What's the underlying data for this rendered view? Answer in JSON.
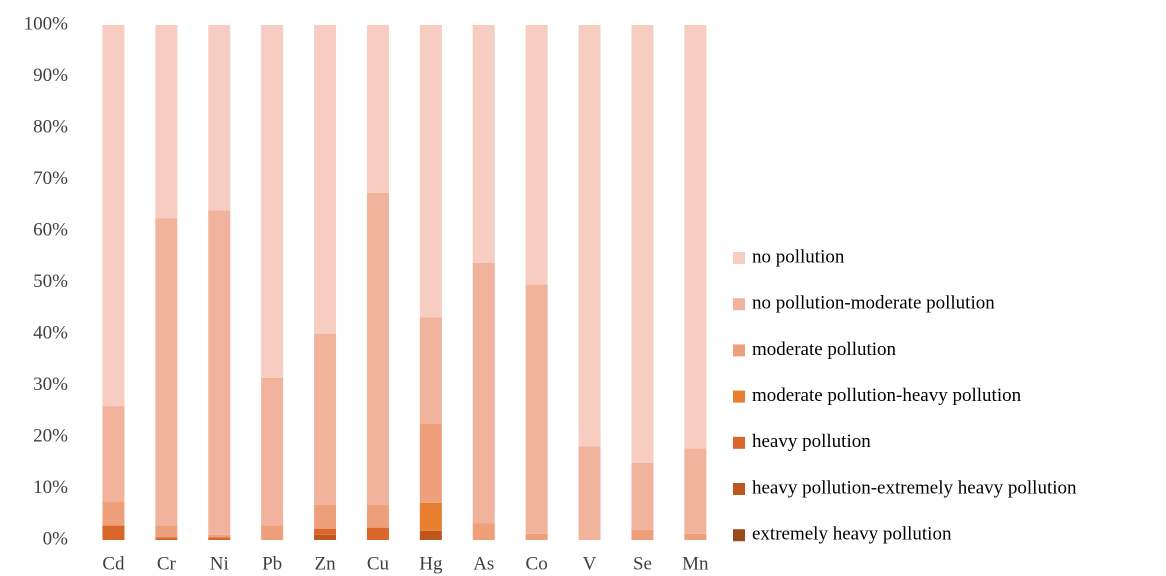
{
  "chart_data": {
    "type": "stacked_bar",
    "categories": [
      "Cd",
      "Cr",
      "Ni",
      "Pb",
      "Zn",
      "Cu",
      "Hg",
      "As",
      "Co",
      "V",
      "Se",
      "Mn"
    ],
    "series": [
      {
        "name": "extremely heavy pollution",
        "color": "#9c4a1a",
        "values": [
          0,
          0,
          0,
          0,
          0,
          0,
          0,
          0,
          0,
          0,
          0,
          0
        ]
      },
      {
        "name": "heavy pollution-extremely heavy pollution",
        "color": "#bf561e",
        "values": [
          0,
          0,
          0,
          0,
          1,
          0,
          1.8,
          0,
          0,
          0,
          0,
          0
        ]
      },
      {
        "name": "heavy pollution",
        "color": "#d9662a",
        "values": [
          2.8,
          0.5,
          0.5,
          0,
          1.2,
          2.4,
          0,
          0,
          0,
          0,
          0,
          0
        ]
      },
      {
        "name": "moderate pollution-heavy pollution",
        "color": "#e87e30",
        "values": [
          0,
          0,
          0,
          0,
          0,
          0,
          5.4,
          0,
          0,
          0,
          0,
          0
        ]
      },
      {
        "name": "moderate pollution",
        "color": "#eea07a",
        "values": [
          4.7,
          2.3,
          0.5,
          2.8,
          4.6,
          4.4,
          15.4,
          3.2,
          1.2,
          0,
          2,
          1.2
        ]
      },
      {
        "name": "no pollution-moderate pollution",
        "color": "#f2b39d",
        "values": [
          18.5,
          59.7,
          63,
          28.7,
          33.2,
          60.6,
          20.6,
          50.6,
          48.4,
          18.2,
          13,
          16.6
        ]
      },
      {
        "name": "no pollution",
        "color": "#f6cdc0",
        "values": [
          74,
          37.5,
          36,
          68.5,
          60,
          32.6,
          56.8,
          46.2,
          50.4,
          81.8,
          85,
          82.2
        ]
      }
    ],
    "ylim": [
      0,
      100
    ],
    "yticks": [
      {
        "value": 0,
        "label": "0%"
      },
      {
        "value": 10,
        "label": "10%"
      },
      {
        "value": 20,
        "label": "20%"
      },
      {
        "value": 30,
        "label": "30%"
      },
      {
        "value": 40,
        "label": "40%"
      },
      {
        "value": 50,
        "label": "50%"
      },
      {
        "value": 60,
        "label": "60%"
      },
      {
        "value": 70,
        "label": "70%"
      },
      {
        "value": 80,
        "label": "80%"
      },
      {
        "value": 90,
        "label": "90%"
      },
      {
        "value": 100,
        "label": "100%"
      }
    ],
    "legend": "right"
  }
}
